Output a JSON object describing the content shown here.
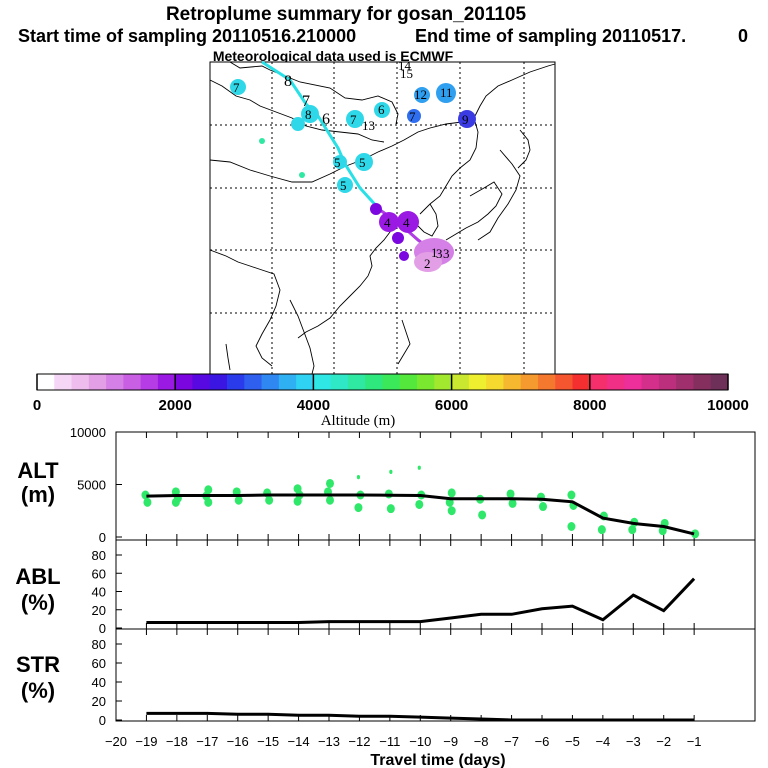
{
  "title": "Retroplume summary for gosan_201105",
  "subtitle_start": "Start time of sampling 20110516.210000",
  "subtitle_end": "End time of sampling 20110517.",
  "subtitle_end_tail": "0",
  "met_note": "Meteorological data used is ECMWF",
  "colorbar": {
    "label": "Altitude (m)",
    "ticks": [
      "0",
      "2000",
      "4000",
      "6000",
      "8000",
      "10000"
    ],
    "range": [
      0,
      10000
    ],
    "colors": [
      "#ffffff",
      "#f6d6f6",
      "#eebdee",
      "#e39fe6",
      "#d580e6",
      "#c95fe3",
      "#b63ce5",
      "#9a1ae3",
      "#7b06e0",
      "#5808e0",
      "#3b16e3",
      "#2a3bec",
      "#2f5fef",
      "#2f88f2",
      "#2fb0f2",
      "#2fd2f2",
      "#2fe8e6",
      "#2fe8c5",
      "#2fe8a2",
      "#2fe87d",
      "#3ae85a",
      "#55e83c",
      "#7ae82f",
      "#a2e82f",
      "#c9e82f",
      "#eef02f",
      "#f5d92f",
      "#f5b82f",
      "#f59a2f",
      "#f5782f",
      "#f5552f",
      "#f52f2f",
      "#f52f6b",
      "#f22f86",
      "#ec2f9a",
      "#d52f8c",
      "#bb2f7d",
      "#a02f6e",
      "#852f5f",
      "#6e2f58"
    ]
  },
  "map": {
    "labels": [
      "1",
      "2",
      "3",
      "3",
      "4",
      "4",
      "5",
      "5",
      "5",
      "6",
      "6",
      "7",
      "7",
      "7",
      "7",
      "8",
      "8",
      "9",
      "11",
      "12",
      "13",
      "14",
      "15"
    ]
  },
  "chart_data": [
    {
      "type": "line",
      "panel": "ALT",
      "ylabel": "ALT",
      "ylabel_unit": "(m)",
      "x": [
        -19,
        -18,
        -17,
        -16,
        -15,
        -14,
        -13,
        -12,
        -11,
        -10,
        -9,
        -8,
        -7,
        -6,
        -5,
        -4,
        -3,
        -2,
        -1
      ],
      "values": [
        3900,
        3950,
        3950,
        3950,
        4000,
        4000,
        4000,
        4000,
        3980,
        3950,
        3650,
        3650,
        3650,
        3600,
        3350,
        1800,
        1300,
        1000,
        300
      ],
      "scatter_x": [
        -19,
        -19,
        -18,
        -18,
        -18,
        -17,
        -17,
        -17,
        -16,
        -16,
        -15,
        -15,
        -14,
        -14,
        -14,
        -13,
        -13,
        -13,
        -12,
        -12,
        -12,
        -11,
        -11,
        -11,
        -10,
        -10,
        -10,
        -9,
        -9,
        -9,
        -8,
        -8,
        -7,
        -7,
        -6,
        -6,
        -5,
        -5,
        -5,
        -4,
        -4,
        -3,
        -3,
        -2,
        -2,
        -1
      ],
      "scatter_y": [
        4000,
        3300,
        4300,
        3700,
        3300,
        4500,
        3900,
        3300,
        4300,
        3500,
        4200,
        3500,
        4600,
        4000,
        3400,
        5100,
        4300,
        3500,
        5700,
        4000,
        2800,
        6200,
        4100,
        2700,
        6600,
        4000,
        3100,
        4200,
        3300,
        2500,
        3600,
        2100,
        4100,
        3200,
        3800,
        2900,
        4000,
        3000,
        1000,
        2000,
        700,
        1400,
        700,
        1300,
        600,
        300
      ],
      "yticks": [
        "0",
        "5000",
        "10000"
      ],
      "ylim": [
        0,
        10000
      ]
    },
    {
      "type": "line",
      "panel": "ABL",
      "ylabel": "ABL",
      "ylabel_unit": "(%)",
      "x": [
        -19,
        -18,
        -17,
        -16,
        -15,
        -14,
        -13,
        -12,
        -11,
        -10,
        -9,
        -8,
        -7,
        -6,
        -5,
        -4,
        -3,
        -2,
        -1
      ],
      "values": [
        6,
        6,
        6,
        6,
        6,
        6,
        7,
        7,
        7,
        7,
        11,
        15,
        15,
        21,
        24,
        9,
        36,
        19,
        54
      ],
      "yticks": [
        "0",
        "20",
        "40",
        "60",
        "80"
      ],
      "ylim": [
        0,
        95
      ]
    },
    {
      "type": "line",
      "panel": "STR",
      "ylabel": "STR",
      "ylabel_unit": "(%)",
      "x": [
        -19,
        -18,
        -17,
        -16,
        -15,
        -14,
        -13,
        -12,
        -11,
        -10,
        -9,
        -8,
        -7,
        -6,
        -5,
        -4,
        -3,
        -2,
        -1
      ],
      "values": [
        7,
        7,
        7,
        6,
        6,
        5,
        5,
        4,
        4,
        3,
        2,
        1,
        0,
        0,
        0,
        0,
        0,
        0,
        0
      ],
      "yticks": [
        "0",
        "20",
        "40",
        "60",
        "80"
      ],
      "ylim": [
        0,
        95
      ]
    }
  ],
  "xaxis": {
    "label": "Travel time (days)",
    "ticks": [
      "−20",
      "−19",
      "−18",
      "−17",
      "−16",
      "−15",
      "−14",
      "−13",
      "−12",
      "−11",
      "−10",
      "−9",
      "−8",
      "−7",
      "−6",
      "−5",
      "−4",
      "−3",
      "−2",
      "−1"
    ]
  }
}
